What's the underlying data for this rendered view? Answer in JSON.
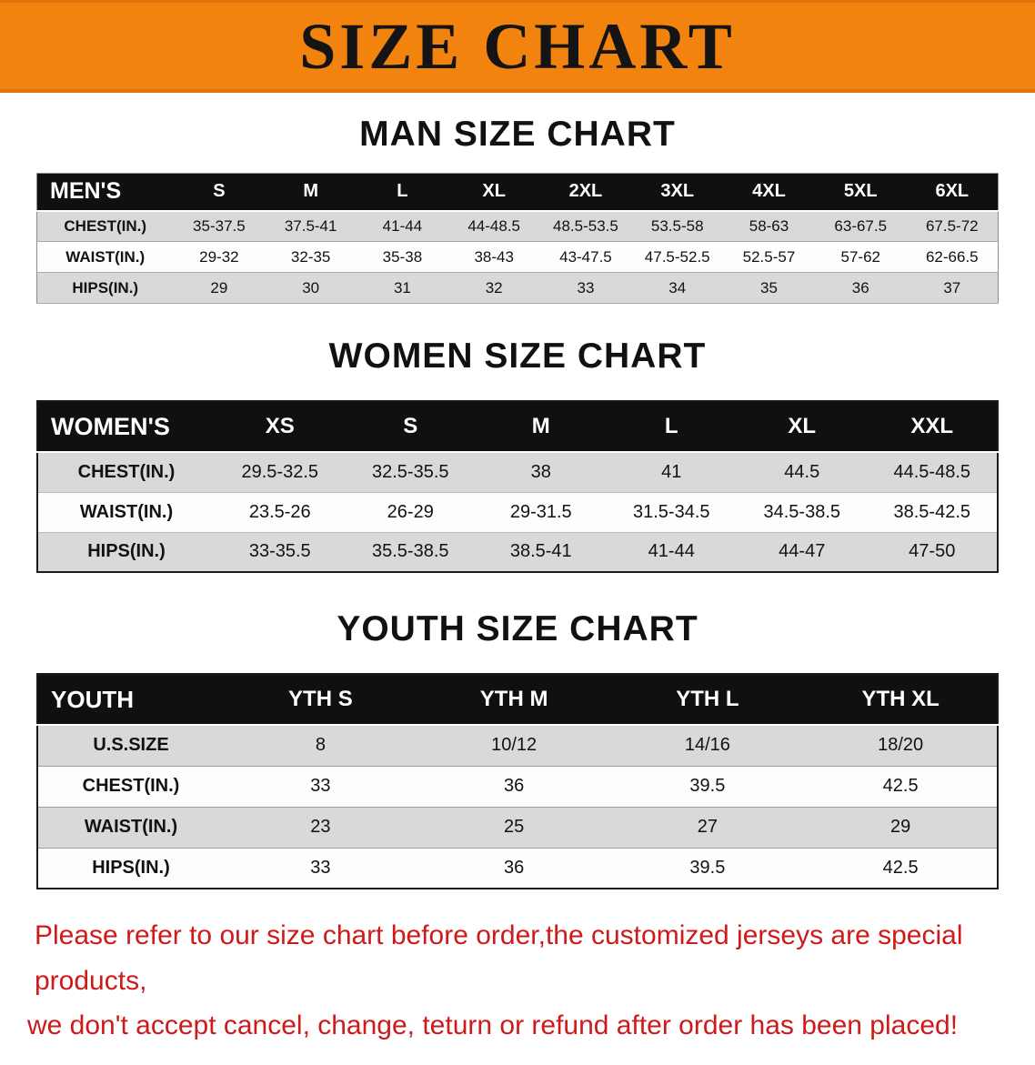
{
  "banner": {
    "title": "SIZE CHART"
  },
  "sections": [
    {
      "id": "men",
      "heading": "MAN SIZE CHART",
      "table": {
        "header": [
          "MEN'S",
          "S",
          "M",
          "L",
          "XL",
          "2XL",
          "3XL",
          "4XL",
          "5XL",
          "6XL"
        ],
        "rows": [
          [
            "CHEST(IN.)",
            "35-37.5",
            "37.5-41",
            "41-44",
            "44-48.5",
            "48.5-53.5",
            "53.5-58",
            "58-63",
            "63-67.5",
            "67.5-72"
          ],
          [
            "WAIST(IN.)",
            "29-32",
            "32-35",
            "35-38",
            "38-43",
            "43-47.5",
            "47.5-52.5",
            "52.5-57",
            "57-62",
            "62-66.5"
          ],
          [
            "HIPS(IN.)",
            "29",
            "30",
            "31",
            "32",
            "33",
            "34",
            "35",
            "36",
            "37"
          ]
        ]
      }
    },
    {
      "id": "women",
      "heading": "WOMEN SIZE CHART",
      "table": {
        "header": [
          "WOMEN'S",
          "XS",
          "S",
          "M",
          "L",
          "XL",
          "XXL"
        ],
        "rows": [
          [
            "CHEST(IN.)",
            "29.5-32.5",
            "32.5-35.5",
            "38",
            "41",
            "44.5",
            "44.5-48.5"
          ],
          [
            "WAIST(IN.)",
            "23.5-26",
            "26-29",
            "29-31.5",
            "31.5-34.5",
            "34.5-38.5",
            "38.5-42.5"
          ],
          [
            "HIPS(IN.)",
            "33-35.5",
            "35.5-38.5",
            "38.5-41",
            "41-44",
            "44-47",
            "47-50"
          ]
        ]
      }
    },
    {
      "id": "youth",
      "heading": "YOUTH SIZE CHART",
      "table": {
        "header": [
          "YOUTH",
          "YTH S",
          "YTH M",
          "YTH L",
          "YTH XL"
        ],
        "rows": [
          [
            "U.S.SIZE",
            "8",
            "10/12",
            "14/16",
            "18/20"
          ],
          [
            "CHEST(IN.)",
            "33",
            "36",
            "39.5",
            "42.5"
          ],
          [
            "WAIST(IN.)",
            "23",
            "25",
            "27",
            "29"
          ],
          [
            "HIPS(IN.)",
            "33",
            "36",
            "39.5",
            "42.5"
          ]
        ]
      }
    }
  ],
  "disclaimer": {
    "line1": "Please refer to our size chart before order,the customized jerseys are special products,",
    "line2": "we don't accept cancel, change, teturn or refund after order has been placed!"
  },
  "colors": {
    "banner_orange": "#f2830f",
    "header_black": "#101010",
    "row_shade_gray": "#d9d9d9",
    "disclaimer_red": "#ce1a1a"
  }
}
